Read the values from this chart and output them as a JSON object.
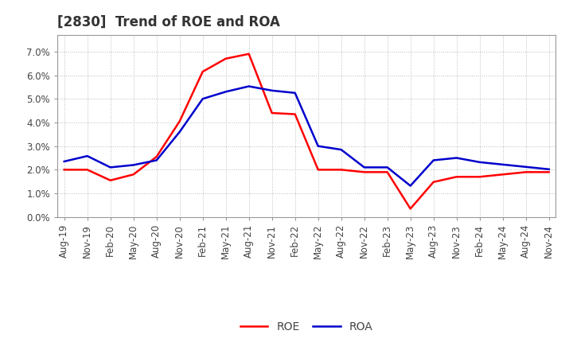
{
  "title": "[2830]  Trend of ROE and ROA",
  "ylim": [
    0.0,
    0.077
  ],
  "yticks": [
    0.0,
    0.01,
    0.02,
    0.03,
    0.04,
    0.05,
    0.06,
    0.07
  ],
  "ytick_labels": [
    "0.0%",
    "1.0%",
    "2.0%",
    "3.0%",
    "4.0%",
    "5.0%",
    "6.0%",
    "7.0%"
  ],
  "background_color": "#ffffff",
  "plot_bg_color": "#ffffff",
  "grid_color": "#bbbbbb",
  "roe_color": "#ff0000",
  "roa_color": "#0000cc",
  "roe_label": "ROE",
  "roa_label": "ROA",
  "title_color": "#333333",
  "tick_color": "#444444",
  "x_labels": [
    "Aug-19",
    "Nov-19",
    "Feb-20",
    "May-20",
    "Aug-20",
    "Nov-20",
    "Feb-21",
    "May-21",
    "Aug-21",
    "Nov-21",
    "Feb-22",
    "May-22",
    "Aug-22",
    "Nov-22",
    "Feb-23",
    "May-23",
    "Aug-23",
    "Nov-23",
    "Feb-24",
    "May-24",
    "Aug-24",
    "Nov-24"
  ],
  "roe_values": [
    0.02,
    0.02,
    0.0155,
    0.018,
    0.0255,
    0.0405,
    0.0615,
    0.067,
    0.069,
    0.044,
    0.0435,
    0.02,
    0.02,
    0.019,
    0.019,
    0.0035,
    0.0148,
    0.017,
    0.017,
    0.018,
    0.019,
    0.019
  ],
  "roa_values": [
    0.0235,
    0.0258,
    0.021,
    0.022,
    0.024,
    0.036,
    0.05,
    0.053,
    0.0553,
    0.0535,
    0.0525,
    0.03,
    0.0285,
    0.021,
    0.021,
    0.0132,
    0.024,
    0.025,
    0.0232,
    0.0222,
    0.0212,
    0.0202
  ],
  "linewidth": 1.8,
  "title_fontsize": 12,
  "tick_fontsize": 8.5,
  "legend_fontsize": 10
}
